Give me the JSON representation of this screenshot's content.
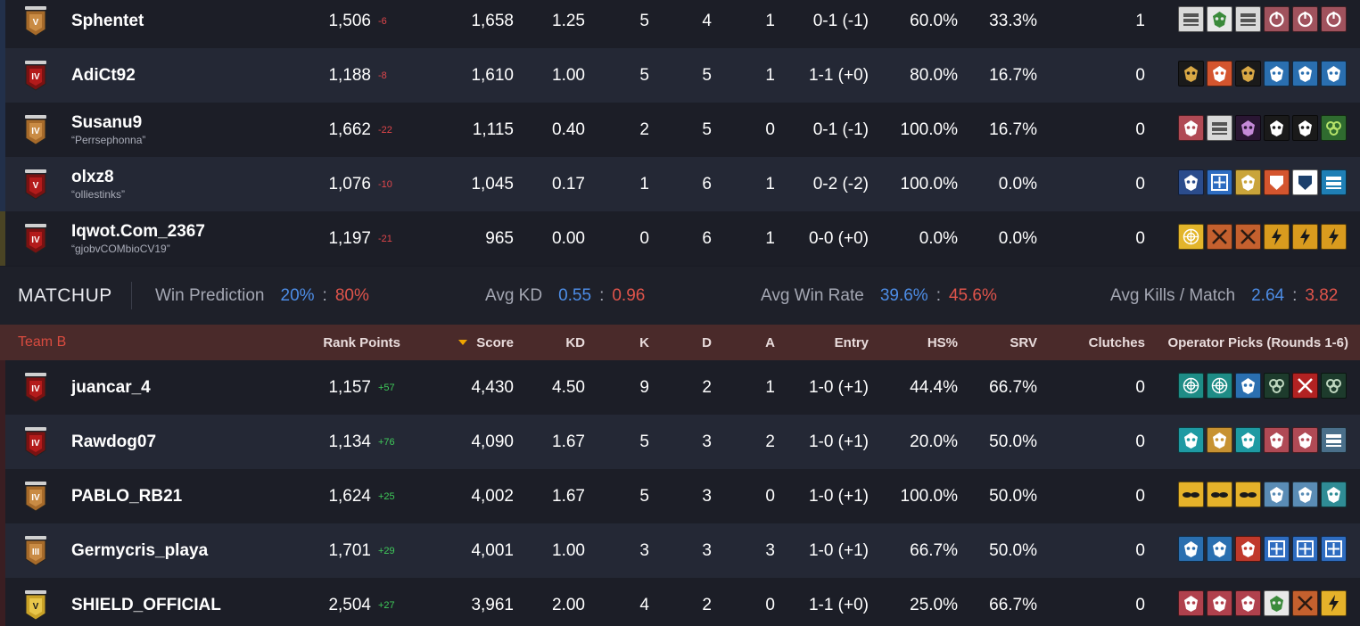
{
  "colors": {
    "blue_team": "#4d8de6",
    "red_team": "#e0544b",
    "gain": "#3fca5a",
    "loss": "#e0464b",
    "header_bg": "#4a2a2a"
  },
  "team_a_rows": [
    {
      "name": "Sphentet",
      "alias": "",
      "rank_tier": "V",
      "rank_color": "bronze",
      "rank_points": "1,506",
      "delta": "-6",
      "score": "1,658",
      "kd": "1.25",
      "k": "5",
      "d": "4",
      "a": "1",
      "entry": "0-1 (-1)",
      "hs": "60.0%",
      "srv": "33.3%",
      "clutches": "1",
      "operators": [
        "barricade-op-icon",
        "skull-op-icon",
        "barricade-op-icon",
        "power-op-icon",
        "power-op-icon",
        "power-op-icon"
      ]
    },
    {
      "name": "AdiCt92",
      "alias": "",
      "rank_tier": "IV",
      "rank_color": "copper",
      "rank_points": "1,188",
      "delta": "-8",
      "score": "1,610",
      "kd": "1.00",
      "k": "5",
      "d": "5",
      "a": "1",
      "entry": "1-1 (+0)",
      "hs": "80.0%",
      "srv": "16.7%",
      "clutches": "0",
      "operators": [
        "hourglass-op-icon",
        "eye-op-icon",
        "hourglass-op-icon",
        "mask-op-icon",
        "mask-op-icon",
        "mask-op-icon"
      ]
    },
    {
      "name": "Susanu9",
      "alias": "“Perrsephonna”",
      "rank_tier": "IV",
      "rank_color": "bronze",
      "rank_points": "1,662",
      "delta": "-22",
      "score": "1,115",
      "kd": "0.40",
      "k": "2",
      "d": "5",
      "a": "0",
      "entry": "0-1 (-1)",
      "hs": "100.0%",
      "srv": "16.7%",
      "clutches": "0",
      "operators": [
        "gasmask-op-icon",
        "barricade-op-icon",
        "slash-op-icon",
        "fox-op-icon",
        "fox-op-icon",
        "cluster-op-icon"
      ]
    },
    {
      "name": "olxz8",
      "alias": "“olliestinks”",
      "rank_tier": "V",
      "rank_color": "copper",
      "rank_points": "1,076",
      "delta": "-10",
      "score": "1,045",
      "kd": "0.17",
      "k": "1",
      "d": "6",
      "a": "1",
      "entry": "0-2 (-2)",
      "hs": "100.0%",
      "srv": "0.0%",
      "clutches": "0",
      "operators": [
        "burst-op-icon",
        "crosshair-op-icon",
        "wings-op-icon",
        "shield-op-icon",
        "crest-op-icon",
        "card-op-icon"
      ]
    },
    {
      "name": "Iqwot.Com_2367",
      "alias": "“gjobvCOMbioCV19”",
      "rank_tier": "IV",
      "rank_color": "copper",
      "rank_points": "1,197",
      "delta": "-21",
      "score": "965",
      "kd": "0.00",
      "k": "0",
      "d": "6",
      "a": "1",
      "entry": "0-0 (+0)",
      "hs": "0.0%",
      "srv": "0.0%",
      "clutches": "0",
      "operators": [
        "web-op-icon",
        "cross-op-icon",
        "cross-op-icon",
        "fist-op-icon",
        "fist-op-icon",
        "fist-op-icon"
      ]
    }
  ],
  "matchup": {
    "title": "MATCHUP",
    "win_prediction": {
      "label": "Win Prediction",
      "a": "20%",
      "b": "80%"
    },
    "avg_kd": {
      "label": "Avg KD",
      "a": "0.55",
      "b": "0.96"
    },
    "avg_win_rate": {
      "label": "Avg Win Rate",
      "a": "39.6%",
      "b": "45.6%"
    },
    "avg_kills": {
      "label": "Avg Kills / Match",
      "a": "2.64",
      "b": "3.82"
    },
    "separator": ":"
  },
  "team_b_header": {
    "team": "Team B",
    "rank_points": "Rank Points",
    "score": "Score",
    "kd": "KD",
    "k": "K",
    "d": "D",
    "a": "A",
    "entry": "Entry",
    "hs": "HS%",
    "srv": "SRV",
    "clutches": "Clutches",
    "operators": "Operator Picks (Rounds 1-6)"
  },
  "team_b_rows": [
    {
      "name": "juancar_4",
      "alias": "",
      "rank_tier": "IV",
      "rank_color": "copper",
      "rank_points": "1,157",
      "delta": "+57",
      "score": "4,430",
      "kd": "4.50",
      "k": "9",
      "d": "2",
      "a": "1",
      "entry": "1-0 (+1)",
      "hs": "44.4%",
      "srv": "66.7%",
      "clutches": "0",
      "operators": [
        "spider-op-icon",
        "spider-op-icon",
        "mask-op-icon",
        "knot-op-icon",
        "sword-op-icon",
        "knot-op-icon"
      ]
    },
    {
      "name": "Rawdog07",
      "alias": "",
      "rank_tier": "IV",
      "rank_color": "copper",
      "rank_points": "1,134",
      "delta": "+76",
      "score": "4,090",
      "kd": "1.67",
      "k": "5",
      "d": "3",
      "a": "2",
      "entry": "1-0 (+1)",
      "hs": "20.0%",
      "srv": "50.0%",
      "clutches": "0",
      "operators": [
        "visor-op-icon",
        "dna-op-icon",
        "visor-op-icon",
        "gasmask-op-icon",
        "gasmask-op-icon",
        "bars-op-icon"
      ]
    },
    {
      "name": "PABLO_RB21",
      "alias": "",
      "rank_tier": "IV",
      "rank_color": "bronze",
      "rank_points": "1,624",
      "delta": "+25",
      "score": "4,002",
      "kd": "1.67",
      "k": "5",
      "d": "3",
      "a": "0",
      "entry": "1-0 (+1)",
      "hs": "100.0%",
      "srv": "50.0%",
      "clutches": "0",
      "operators": [
        "goggles-op-icon",
        "goggles-op-icon",
        "goggles-op-icon",
        "robot-op-icon",
        "robot-op-icon",
        "helmet-op-icon"
      ]
    },
    {
      "name": "Germycris_playa",
      "alias": "",
      "rank_tier": "III",
      "rank_color": "bronze",
      "rank_points": "1,701",
      "delta": "+29",
      "score": "4,001",
      "kd": "1.00",
      "k": "3",
      "d": "3",
      "a": "3",
      "entry": "1-0 (+1)",
      "hs": "66.7%",
      "srv": "50.0%",
      "clutches": "0",
      "operators": [
        "mask-op-icon",
        "mask-op-icon",
        "claw-op-icon",
        "crosshair-op-icon",
        "crosshair-op-icon",
        "crosshair-op-icon"
      ]
    },
    {
      "name": "SHIELD_OFFICIAL",
      "alias": "",
      "rank_tier": "V",
      "rank_color": "gold",
      "rank_points": "2,504",
      "delta": "+27",
      "score": "3,961",
      "kd": "2.00",
      "k": "4",
      "d": "2",
      "a": "0",
      "entry": "1-1 (+0)",
      "hs": "25.0%",
      "srv": "66.7%",
      "clutches": "0",
      "operators": [
        "gear-op-icon",
        "gear-op-icon",
        "gear-op-icon",
        "skull-op-icon",
        "cross-op-icon",
        "bolt-op-icon"
      ]
    }
  ]
}
